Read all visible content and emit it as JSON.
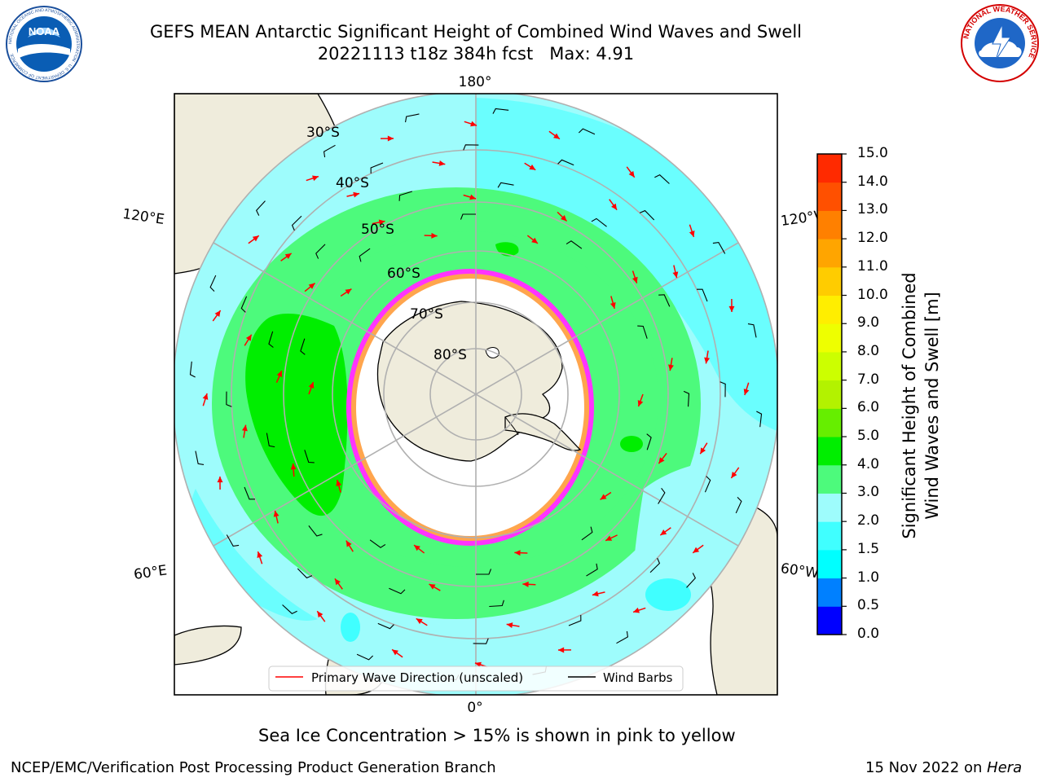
{
  "title": {
    "line1": "GEFS MEAN Antarctic Significant Height of Combined Wind Waves and Swell",
    "line2": "20221113 t18z 384h fcst   Max: 4.91"
  },
  "logos": {
    "left": {
      "icon": "noaa-logo",
      "text": "NOAA",
      "ring_text": "NATIONAL OCEANIC AND ATMOSPHERIC ADMINISTRATION · U.S. DEPARTMENT OF COMMERCE"
    },
    "right": {
      "icon": "nws-logo",
      "ring_text": "NATIONAL WEATHER SERVICE"
    }
  },
  "map": {
    "projection": "south-polar-stereographic",
    "lon_labels": {
      "top": "180°",
      "bottom": "0°",
      "left_upper": "120°E",
      "left_lower": "60°E",
      "right_upper": "120°W",
      "right_lower": "60°W"
    },
    "lat_labels": [
      "30°S",
      "40°S",
      "50°S",
      "60°S",
      "70°S",
      "80°S"
    ],
    "colors": {
      "land": "#efecdc",
      "ocean_low": "#9efcfc",
      "ocean_mid": "#4dfa7c",
      "ocean_high": "#00ee00",
      "ice_edge": "#ff33ff",
      "ice_fill": "#ffffff",
      "arrow": "#ff0000",
      "barb": "#000000",
      "grid": "#b0b0b0"
    }
  },
  "legend": {
    "items": [
      {
        "label": "Primary Wave Direction (unscaled)",
        "color": "#ff0000"
      },
      {
        "label": "Wind Barbs",
        "color": "#000000"
      }
    ]
  },
  "colorbar": {
    "title_line1": "Significant Height of Combined",
    "title_line2": "Wind Waves and Swell [m]",
    "ticks": [
      "0.0",
      "0.5",
      "1.0",
      "1.5",
      "2.0",
      "3.0",
      "4.0",
      "5.0",
      "6.0",
      "7.0",
      "8.0",
      "9.0",
      "10.0",
      "11.0",
      "12.0",
      "13.0",
      "14.0",
      "15.0"
    ],
    "colors": [
      "#0000ff",
      "#0080ff",
      "#00ffff",
      "#40ffff",
      "#9efcfc",
      "#4dfa7c",
      "#00ee00",
      "#66ee00",
      "#b3f200",
      "#ccff00",
      "#eeff00",
      "#ffee00",
      "#ffcc00",
      "#ffa500",
      "#ff8000",
      "#ff5000",
      "#ff2a00"
    ]
  },
  "caption": "Sea Ice Concentration > 15% is shown in pink to yellow",
  "footer": {
    "left": "NCEP/EMC/Verification Post Processing Product Generation Branch",
    "right_date": "15 Nov 2022 on ",
    "right_host": "Hera"
  }
}
